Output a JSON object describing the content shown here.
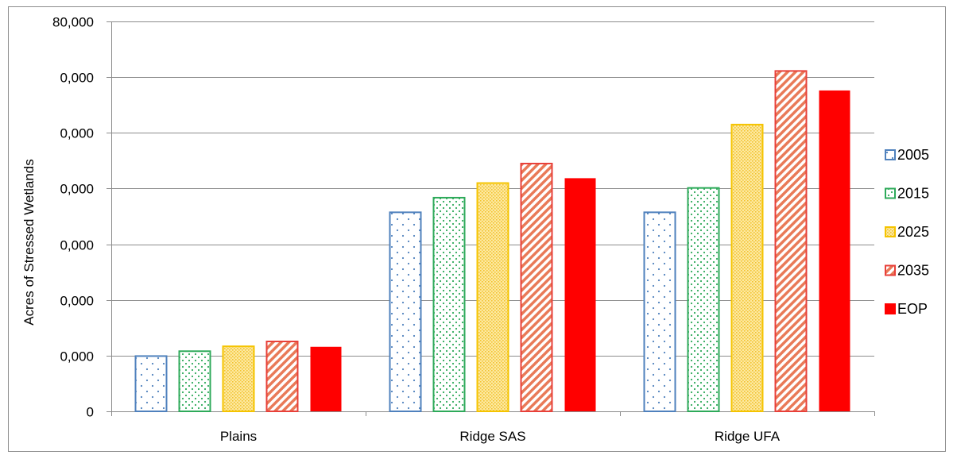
{
  "chart_data": {
    "type": "bar",
    "title": "",
    "xlabel": "",
    "ylabel": "Acres of Stressed Wetlands",
    "categories": [
      "Plains",
      "Ridge SAS",
      "Ridge UFA"
    ],
    "y_tick_labels": [
      "0",
      "0,000",
      "0,000",
      "0,000",
      "0,000",
      "0,000",
      "0,000",
      "80,000"
    ],
    "ylim": [
      0,
      80000
    ],
    "grid": true,
    "legend_position": "right",
    "series": [
      {
        "name": "2005",
        "values": [
          11500,
          41000,
          41000
        ],
        "color": "#4f81bd",
        "pattern": "dots"
      },
      {
        "name": "2015",
        "values": [
          12500,
          44000,
          46000
        ],
        "color": "#2eaa5a",
        "pattern": "dense-dots"
      },
      {
        "name": "2025",
        "values": [
          13500,
          47000,
          59000
        ],
        "color": "#f5c400",
        "pattern": "fine-dots"
      },
      {
        "name": "2035",
        "values": [
          14500,
          51000,
          70000
        ],
        "color": "#e8403a",
        "pattern": "diagonal"
      },
      {
        "name": "EOP",
        "values": [
          13400,
          48000,
          66000
        ],
        "color": "#ff0000",
        "pattern": "solid"
      }
    ]
  }
}
